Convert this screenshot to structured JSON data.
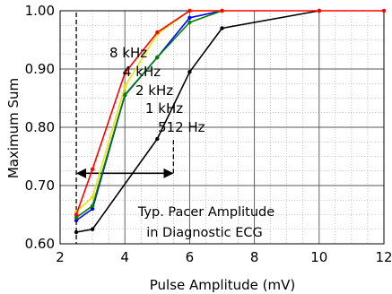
{
  "chart_data": {
    "type": "line",
    "title": "",
    "xlabel": "Pulse Amplitude (mV)",
    "ylabel": "Maximum Sum",
    "xlim": [
      2,
      12
    ],
    "ylim": [
      0.6,
      1.0
    ],
    "x_ticks": [
      2,
      4,
      6,
      8,
      10,
      12
    ],
    "y_ticks": [
      0.6,
      0.7,
      0.8,
      0.9,
      1.0
    ],
    "x_tick_labels": [
      "2",
      "4",
      "6",
      "8",
      "10",
      "12"
    ],
    "y_tick_labels": [
      "0.60",
      "0.70",
      "0.80",
      "0.90",
      "1.00"
    ],
    "grid": true,
    "minor_grid": "dotted",
    "series": [
      {
        "name": "8 kHz",
        "color": "#ff0000",
        "points": [
          [
            2.5,
            0.65
          ],
          [
            3,
            0.728
          ],
          [
            4,
            0.893
          ],
          [
            5,
            0.963
          ],
          [
            6,
            1.0
          ],
          [
            7,
            1.0
          ],
          [
            10,
            1.0
          ],
          [
            12,
            1.0
          ]
        ]
      },
      {
        "name": "4 kHz",
        "color": "#e6e600",
        "points": [
          [
            2.5,
            0.655
          ],
          [
            3,
            0.68
          ],
          [
            4,
            0.87
          ],
          [
            5,
            0.96
          ],
          [
            6,
            1.0
          ],
          [
            7,
            1.0
          ]
        ]
      },
      {
        "name": "2 kHz",
        "color": "#008000",
        "points": [
          [
            2.5,
            0.645
          ],
          [
            3,
            0.665
          ],
          [
            4,
            0.856
          ],
          [
            5,
            0.92
          ],
          [
            6,
            0.98
          ],
          [
            7,
            1.0
          ]
        ]
      },
      {
        "name": "1 kHz",
        "color": "#0000ff",
        "points": [
          [
            2.5,
            0.64
          ],
          [
            3,
            0.66
          ],
          [
            4,
            0.855
          ],
          [
            5,
            0.92
          ],
          [
            6,
            0.988
          ],
          [
            7,
            1.0
          ]
        ]
      },
      {
        "name": "512 Hz",
        "color": "#000000",
        "points": [
          [
            2.5,
            0.62
          ],
          [
            3,
            0.625
          ],
          [
            5,
            0.78
          ],
          [
            6,
            0.895
          ],
          [
            7,
            0.97
          ],
          [
            10,
            1.0
          ]
        ]
      }
    ],
    "annotations": {
      "pacer_range_label_line1": "Typ. Pacer Amplitude",
      "pacer_range_label_line2": "in Diagnostic ECG",
      "pacer_range": [
        2.5,
        5.5
      ]
    }
  }
}
